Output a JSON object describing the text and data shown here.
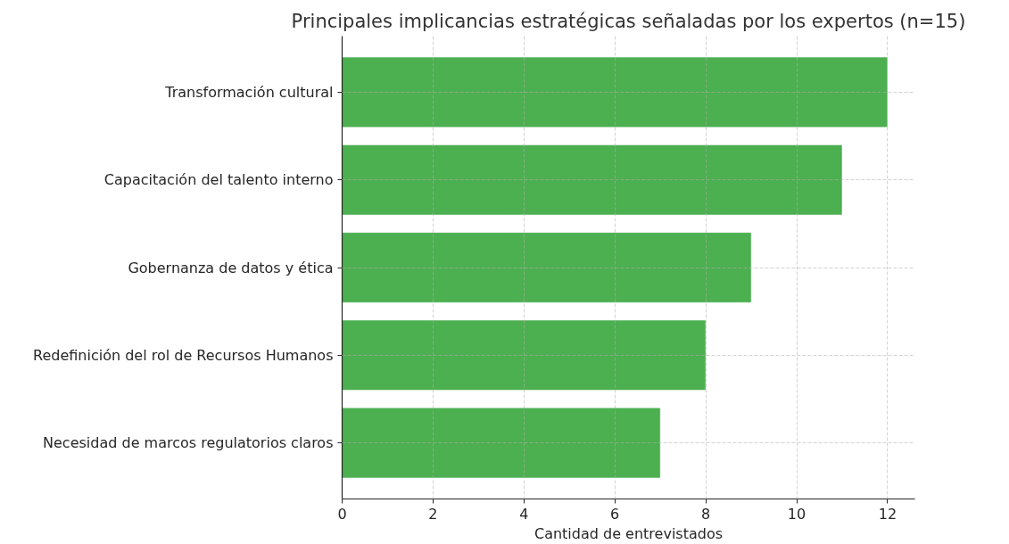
{
  "chart_data": {
    "type": "bar",
    "orientation": "horizontal",
    "title": "Principales implicancias estratégicas señaladas por los expertos (n=15)",
    "xlabel": "Cantidad de entrevistados",
    "categories": [
      "Transformación cultural",
      "Capacitación del talento interno",
      "Gobernanza de datos y ética",
      "Redefinición del rol de Recursos Humanos",
      "Necesidad de marcos regulatorios claros"
    ],
    "values": [
      12,
      11,
      9,
      8,
      7
    ],
    "color": "#4caf50",
    "xlim": [
      0,
      12.6
    ],
    "xticks": [
      0,
      2,
      4,
      6,
      8,
      10,
      12
    ],
    "grid": true
  }
}
